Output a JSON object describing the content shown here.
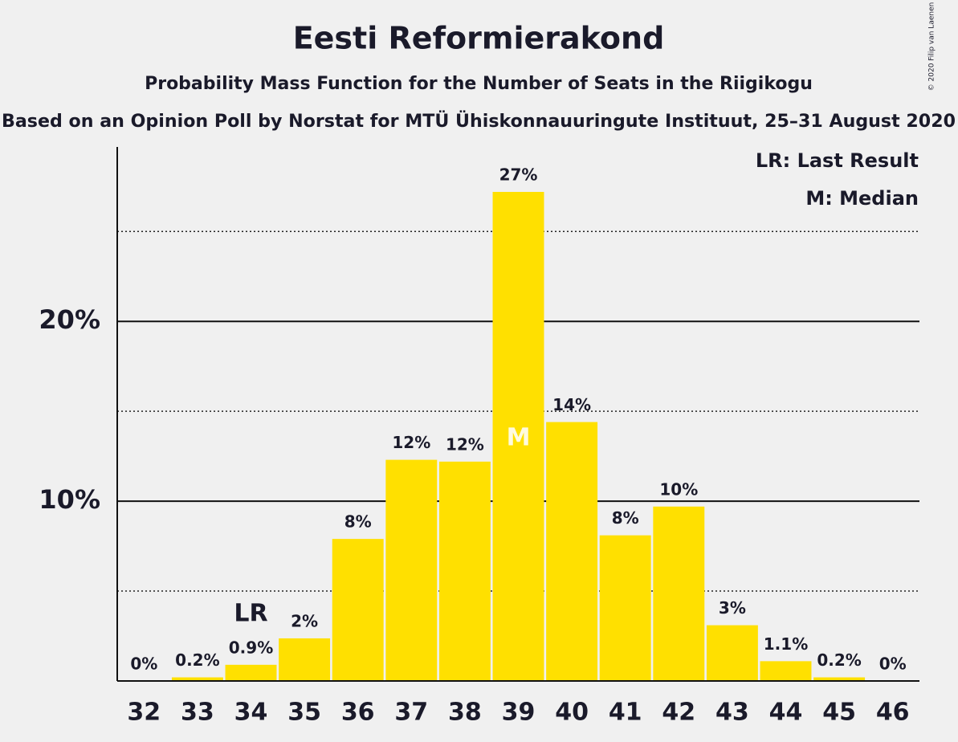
{
  "chart_data": {
    "type": "bar",
    "title": "Eesti Reformierakond",
    "subtitle": "Probability Mass Function for the Number of Seats in the Riigikogu",
    "source": "Based on an Opinion Poll by Norstat for MTÜ Ühiskonnauuringute Instituut, 25–31 August 2020",
    "copyright": "© 2020 Filip van Laenen",
    "categories": [
      "32",
      "33",
      "34",
      "35",
      "36",
      "37",
      "38",
      "39",
      "40",
      "41",
      "42",
      "43",
      "44",
      "45",
      "46"
    ],
    "values": [
      0,
      0.2,
      0.9,
      2.37,
      7.9,
      12.3,
      12.2,
      27.2,
      14.4,
      8.1,
      9.7,
      3.1,
      1.1,
      0.2,
      0
    ],
    "value_labels": [
      "0%",
      "0.2%",
      "0.9%",
      "2%",
      "8%",
      "12%",
      "12%",
      "27%",
      "14%",
      "8%",
      "10%",
      "3%",
      "1.1%",
      "0.2%",
      "0%"
    ],
    "color": "#ffe000",
    "ylim": [
      0,
      29.7
    ],
    "yticks": [
      {
        "value": 10,
        "label": "10%"
      },
      {
        "value": 20,
        "label": "20%"
      }
    ],
    "minor_yticks": [
      5,
      15,
      25
    ],
    "grid": true,
    "annotations": [
      {
        "text": "LR",
        "x": "34"
      },
      {
        "text": "M",
        "x": "39"
      }
    ],
    "legend": [
      "LR: Last Result",
      "M: Median"
    ]
  }
}
